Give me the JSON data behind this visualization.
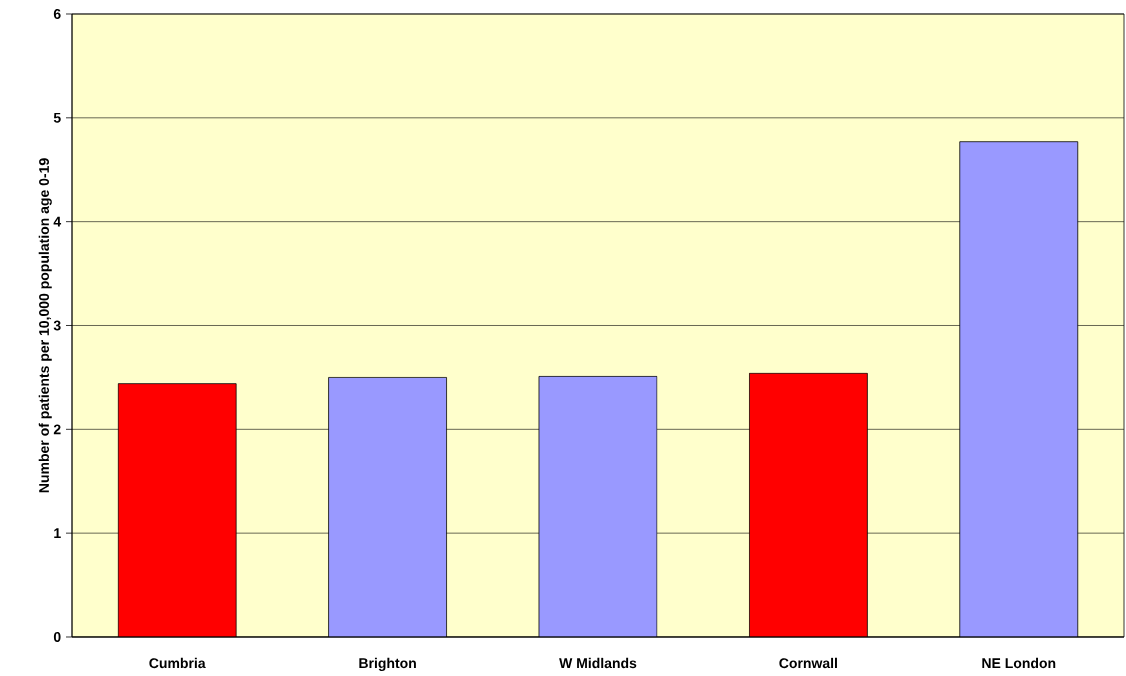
{
  "chart_data": {
    "type": "bar",
    "ylabel": "Number of patients per 10,000 population age 0-19",
    "categories": [
      "Cumbria",
      "Brighton",
      "W Midlands",
      "Cornwall",
      "NE London"
    ],
    "values": [
      2.44,
      2.5,
      2.51,
      2.54,
      4.77
    ],
    "colors": [
      "#ff0000",
      "#9999ff",
      "#9999ff",
      "#ff0000",
      "#9999ff"
    ],
    "ylim": [
      0,
      6
    ],
    "yticks": [
      0,
      1,
      2,
      3,
      4,
      5,
      6
    ],
    "grid": "y"
  }
}
